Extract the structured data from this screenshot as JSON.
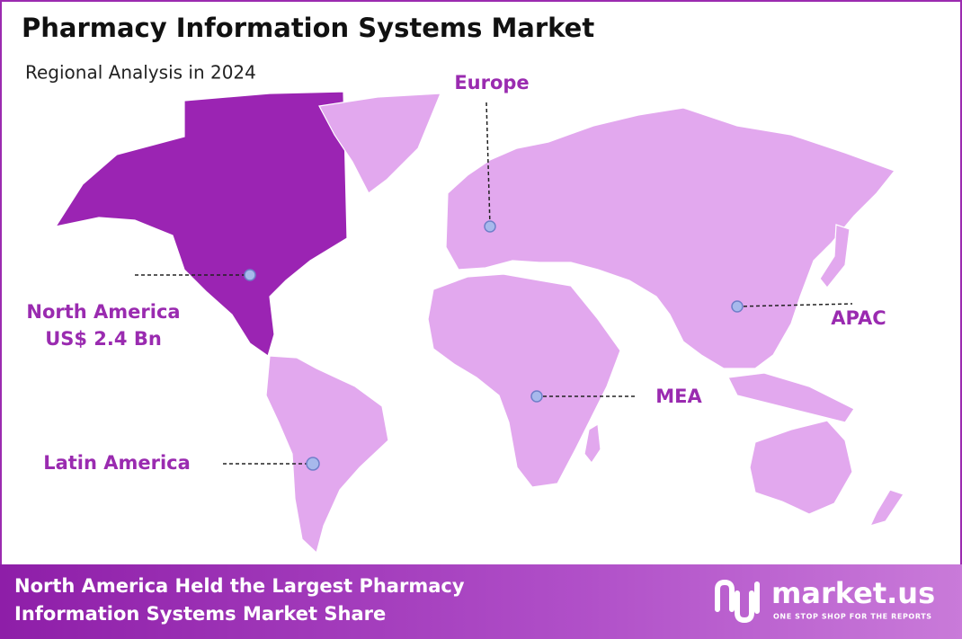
{
  "header": {
    "title": "Pharmacy Information Systems Market",
    "subtitle": "Regional Analysis in 2024"
  },
  "regions": [
    {
      "name": "North America",
      "value_label": "US$ 2.4 Bn"
    },
    {
      "name": "Europe"
    },
    {
      "name": "APAC"
    },
    {
      "name": "MEA"
    },
    {
      "name": "Latin America"
    }
  ],
  "footer": {
    "text_lines": [
      "North America Held the Largest Pharmacy",
      "Information Systems Market Share"
    ],
    "logo": "market.us",
    "tagline": "ONE STOP SHOP FOR THE REPORTS"
  }
}
